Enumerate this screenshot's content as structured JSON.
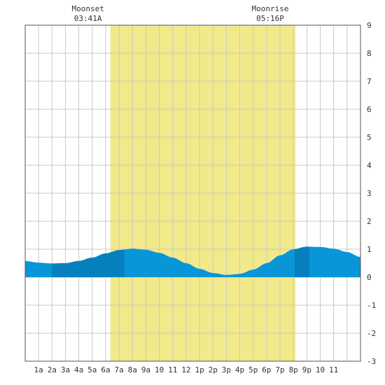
{
  "chart_data": {
    "type": "area",
    "title": "",
    "xlabel": "",
    "ylabel": "",
    "x_range_hours": [
      -1,
      24
    ],
    "ylim": [
      -3,
      9
    ],
    "x_tick_labels": [
      "1a",
      "2a",
      "3a",
      "4a",
      "5a",
      "6a",
      "7a",
      "8a",
      "9a",
      "10",
      "11",
      "12",
      "1p",
      "2p",
      "3p",
      "4p",
      "5p",
      "6p",
      "7p",
      "8p",
      "9p",
      "10",
      "11"
    ],
    "y_tick_labels": [
      "-3",
      "-2",
      "-1",
      "0",
      "1",
      "2",
      "3",
      "4",
      "5",
      "6",
      "7",
      "8",
      "9"
    ],
    "grid": true,
    "daylight_hours": [
      5.35,
      19.15
    ],
    "moon_events": [
      {
        "label": "Moonset",
        "time": "03:41A",
        "hour": 3.68
      },
      {
        "label": "Moonrise",
        "time": "05:16P",
        "hour": 17.27
      }
    ],
    "tide_curve": {
      "x_hours": [
        -1,
        0,
        1,
        2,
        3,
        4,
        5,
        6,
        7,
        8,
        9,
        10,
        11,
        12,
        13,
        14,
        15,
        16,
        17,
        18,
        19,
        20,
        21,
        22,
        23,
        24
      ],
      "y_feet": [
        0.58,
        0.52,
        0.49,
        0.5,
        0.58,
        0.7,
        0.85,
        0.97,
        1.02,
        0.98,
        0.87,
        0.7,
        0.5,
        0.3,
        0.15,
        0.08,
        0.12,
        0.27,
        0.5,
        0.78,
        1.0,
        1.09,
        1.08,
        1.02,
        0.9,
        0.72
      ]
    },
    "dark_bands_hours": [
      [
        1,
        6.4
      ],
      [
        19.1,
        20.2
      ]
    ],
    "colors": {
      "daylight": "#f2ea8a",
      "water": "#0896d8",
      "water_dark": "#0680bd",
      "grid": "#c8c8c8",
      "axis": "#333333"
    }
  }
}
